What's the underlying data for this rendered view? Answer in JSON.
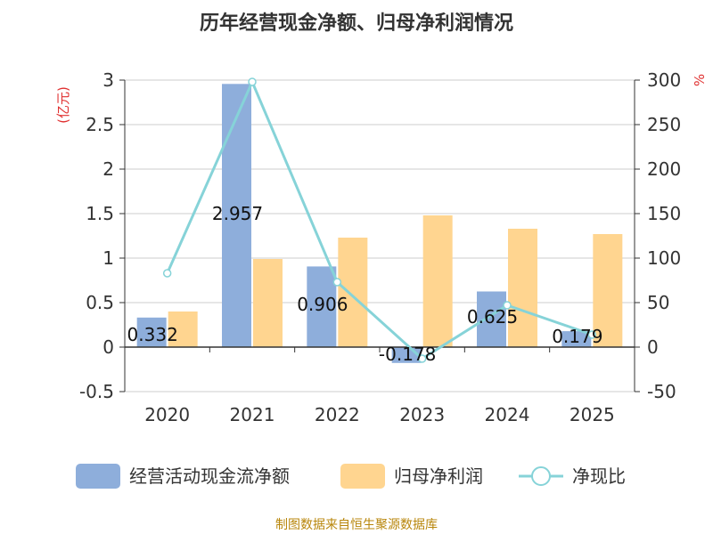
{
  "chart_data": {
    "type": "bar",
    "title": "历年经营现金净额、归母净利润情况",
    "categories": [
      "2020",
      "2021",
      "2022",
      "2023",
      "2024",
      "2025"
    ],
    "series": [
      {
        "name": "经营活动现金流净额",
        "type": "bar",
        "axis": "left",
        "color": "#8eaedb",
        "values": [
          0.332,
          2.957,
          0.906,
          -0.178,
          0.625,
          0.179
        ],
        "labels": [
          "0.332",
          "2.957",
          "0.906",
          "-0.178",
          "0.625",
          "0.179"
        ]
      },
      {
        "name": "归母净利润",
        "type": "bar",
        "axis": "left",
        "color": "#ffd590",
        "values": [
          0.4,
          0.99,
          1.23,
          1.48,
          1.33,
          1.27
        ]
      },
      {
        "name": "净现比",
        "type": "line",
        "axis": "right",
        "color": "#86d3d8",
        "values": [
          83,
          298,
          73,
          -13,
          47,
          14
        ]
      }
    ],
    "y_left": {
      "unit": "(亿元)",
      "ylim": [
        -0.5,
        3
      ],
      "ticks": [
        "3",
        "2.5",
        "2",
        "1.5",
        "1",
        "0.5",
        "0",
        "-0.5"
      ],
      "tick_values": [
        3,
        2.5,
        2,
        1.5,
        1,
        0.5,
        0,
        -0.5
      ]
    },
    "y_right": {
      "unit": "%",
      "ylim": [
        -50,
        300
      ],
      "ticks": [
        "300",
        "250",
        "200",
        "150",
        "100",
        "50",
        "0",
        "-50"
      ],
      "tick_values": [
        300,
        250,
        200,
        150,
        100,
        50,
        0,
        -50
      ]
    },
    "grid": true,
    "legend": "bottom",
    "source": "制图数据来自恒生聚源数据库"
  }
}
